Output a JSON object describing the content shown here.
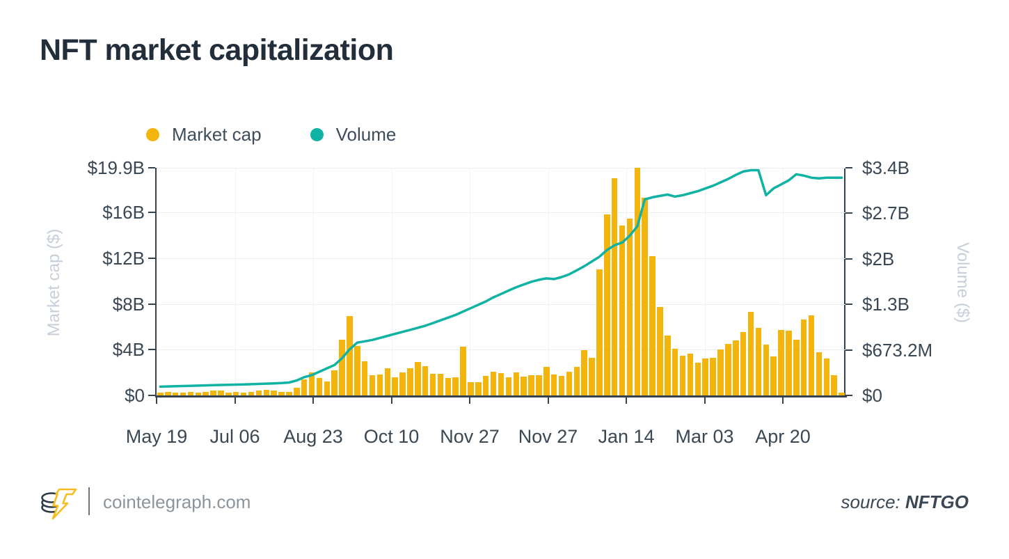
{
  "title": {
    "text": "NFT market capitalization"
  },
  "legend": {
    "items": [
      {
        "label": "Market cap",
        "color": "#f3b50c"
      },
      {
        "label": "Volume",
        "color": "#10b3a3"
      }
    ]
  },
  "footer": {
    "site": "cointelegraph.com",
    "source_label": "source:",
    "source_name": "NFTGO",
    "logo": "cointelegraph-coin-lightning-logo"
  },
  "chart_data": {
    "type": "bar+line",
    "grid": true,
    "x_tick_labels": [
      "May 19",
      "Jul 06",
      "Aug 23",
      "Oct 10",
      "Nov 27",
      "Nov 27",
      "Jan 14",
      "Mar 03",
      "Apr 20"
    ],
    "left_axis": {
      "title": "Market cap ($)",
      "unit": "$B",
      "max": 19.9,
      "ticks": [
        {
          "label": "$0",
          "value": 0
        },
        {
          "label": "$4B",
          "value": 4
        },
        {
          "label": "$8B",
          "value": 8
        },
        {
          "label": "$12B",
          "value": 12
        },
        {
          "label": "$16B",
          "value": 16
        },
        {
          "label": "$19.9B",
          "value": 19.9
        }
      ]
    },
    "right_axis": {
      "title": "Volume ($)",
      "unit": "$B",
      "max": 3.366,
      "ticks": [
        {
          "label": "$0",
          "value": 0
        },
        {
          "label": "$673.2M",
          "value": 0.6732
        },
        {
          "label": "$1.3B",
          "value": 1.3464
        },
        {
          "label": "$2B",
          "value": 2.0196
        },
        {
          "label": "$2.7B",
          "value": 2.6928
        },
        {
          "label": "$3.4B",
          "value": 3.366
        }
      ]
    },
    "series": [
      {
        "name": "Market cap",
        "type": "bar",
        "color": "#f3b50c",
        "axis": "left",
        "values_billions": [
          0.25,
          0.3,
          0.27,
          0.25,
          0.3,
          0.27,
          0.3,
          0.45,
          0.42,
          0.27,
          0.33,
          0.27,
          0.33,
          0.4,
          0.5,
          0.4,
          0.31,
          0.33,
          0.65,
          1.4,
          2.0,
          1.55,
          1.2,
          2.2,
          4.85,
          6.95,
          4.3,
          3.0,
          1.75,
          1.8,
          2.35,
          1.6,
          2.0,
          2.4,
          2.9,
          2.55,
          1.9,
          1.9,
          1.5,
          1.6,
          4.25,
          1.15,
          1.15,
          1.7,
          2.1,
          1.95,
          1.6,
          2.0,
          1.65,
          1.75,
          1.75,
          2.5,
          1.8,
          1.7,
          2.05,
          2.5,
          3.95,
          3.3,
          11.0,
          15.8,
          19.0,
          14.85,
          15.45,
          19.9,
          17.3,
          12.2,
          7.75,
          5.25,
          4.05,
          3.5,
          3.65,
          2.85,
          3.25,
          3.3,
          4.0,
          4.5,
          4.8,
          5.55,
          7.3,
          5.9,
          4.45,
          3.4,
          5.75,
          5.65,
          4.85,
          6.65,
          7.0,
          3.75,
          3.25,
          1.75,
          0.25
        ]
      },
      {
        "name": "Volume",
        "type": "line",
        "color": "#10b3a3",
        "axis": "right",
        "values_billions": [
          0.13,
          0.133,
          0.136,
          0.139,
          0.142,
          0.145,
          0.148,
          0.151,
          0.154,
          0.157,
          0.16,
          0.163,
          0.166,
          0.17,
          0.174,
          0.178,
          0.182,
          0.19,
          0.22,
          0.27,
          0.3,
          0.35,
          0.4,
          0.45,
          0.55,
          0.68,
          0.78,
          0.8,
          0.82,
          0.85,
          0.88,
          0.91,
          0.94,
          0.97,
          1.0,
          1.03,
          1.07,
          1.11,
          1.15,
          1.19,
          1.24,
          1.29,
          1.34,
          1.39,
          1.45,
          1.5,
          1.55,
          1.6,
          1.64,
          1.68,
          1.71,
          1.73,
          1.72,
          1.75,
          1.79,
          1.85,
          1.91,
          1.98,
          2.05,
          2.15,
          2.22,
          2.26,
          2.36,
          2.5,
          2.9,
          2.93,
          2.95,
          2.97,
          2.94,
          2.96,
          2.99,
          3.02,
          3.06,
          3.1,
          3.15,
          3.2,
          3.26,
          3.31,
          3.33,
          3.33,
          2.96,
          3.06,
          3.12,
          3.18,
          3.27,
          3.25,
          3.22,
          3.21,
          3.22,
          3.22,
          3.22
        ]
      }
    ]
  }
}
